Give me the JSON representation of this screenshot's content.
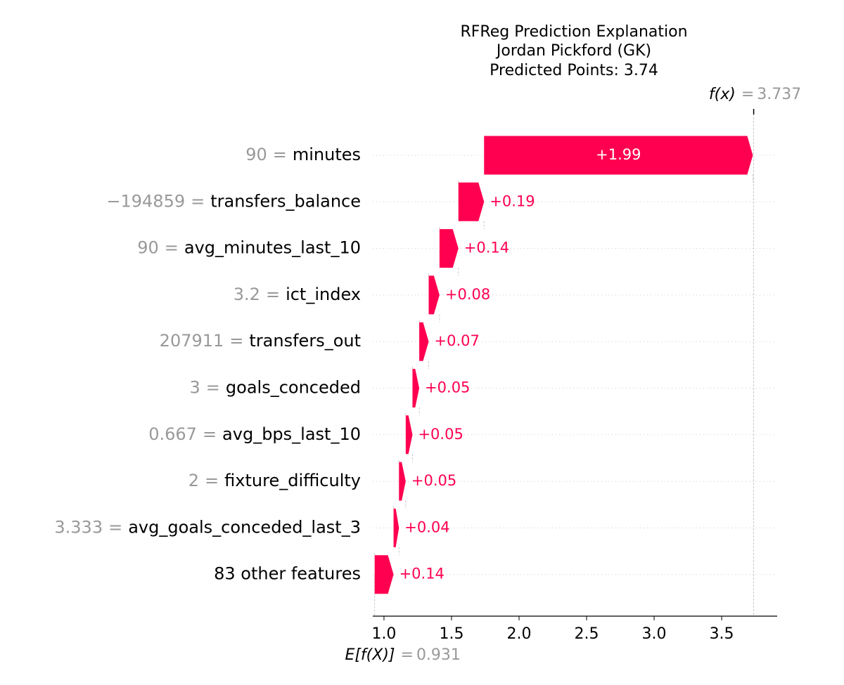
{
  "chart_data": {
    "type": "waterfall",
    "title": [
      "RFReg Prediction Explanation",
      "Jordan Pickford (GK)",
      "Predicted Points: 3.74"
    ],
    "features": [
      "minutes",
      "transfers_balance",
      "avg_minutes_last_10",
      "ict_index",
      "transfers_out",
      "goals_conceded",
      "avg_bps_last_10",
      "fixture_difficulty",
      "avg_goals_conceded_last_3",
      "83 other features"
    ],
    "feature_values": [
      "90",
      "−194859",
      "90",
      "3.2",
      "207911",
      "3",
      "0.667",
      "2",
      "3.333",
      null
    ],
    "separator": "=",
    "values": [
      1.99,
      0.19,
      0.14,
      0.08,
      0.07,
      0.05,
      0.05,
      0.05,
      0.04,
      0.14
    ],
    "value_labels": [
      "+1.99",
      "+0.19",
      "+0.14",
      "+0.08",
      "+0.07",
      "+0.05",
      "+0.05",
      "+0.05",
      "+0.04",
      "+0.14"
    ],
    "color": "#ff0051",
    "base_label": "E[f(X)]",
    "base_value": 0.931,
    "output_label": "f(x)",
    "output_value": 3.737,
    "xlim": [
      0.917,
      3.911
    ],
    "xticks": [
      {
        "value": 1.0,
        "label": "1.0"
      },
      {
        "value": 1.5,
        "label": "1.5"
      },
      {
        "value": 2.0,
        "label": "2.0"
      },
      {
        "value": 2.5,
        "label": "2.5"
      },
      {
        "value": 3.0,
        "label": "3.0"
      },
      {
        "value": 3.5,
        "label": "3.5"
      }
    ]
  }
}
